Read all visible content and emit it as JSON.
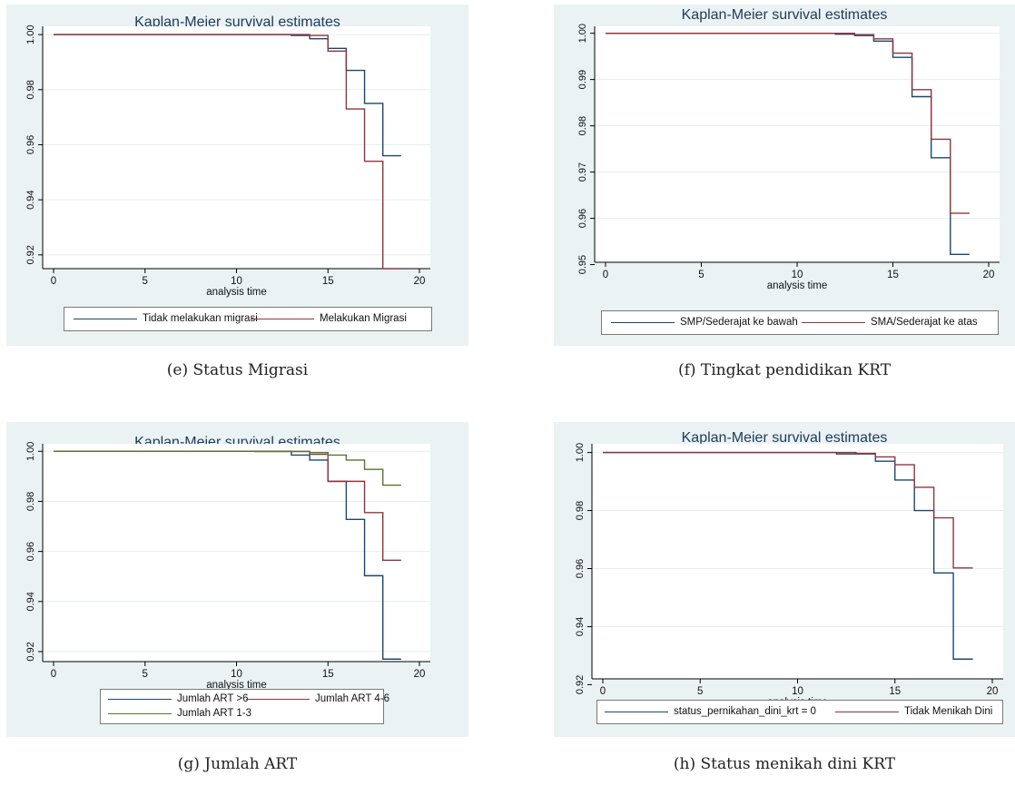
{
  "colors": {
    "blue": "#1a476f",
    "red": "#90353b",
    "green": "#55752f",
    "panel_bg": "#eaf2f3"
  },
  "chart_data": [
    {
      "type": "line",
      "title": "Kaplan-Meier survival estimates",
      "xlabel": "analysis time",
      "ylabel": "",
      "caption": "(e) Status Migrasi",
      "xlim": [
        0,
        20
      ],
      "ylim": [
        0.915,
        1.003
      ],
      "xticks": [
        0,
        5,
        10,
        15,
        20
      ],
      "yticks": [
        0.92,
        0.94,
        0.96,
        0.98,
        1.0
      ],
      "ytick_labels": [
        "0.92",
        "0.94",
        "0.96",
        "0.98",
        "1.00"
      ],
      "legend_cols": 2,
      "series": [
        {
          "name": "Tidak melakukan migrasi",
          "color": "#1a476f",
          "x": [
            0,
            13,
            14,
            15,
            16,
            17,
            18,
            19
          ],
          "y": [
            1.0,
            0.9997,
            0.9985,
            0.995,
            0.987,
            0.975,
            0.956,
            0.956
          ]
        },
        {
          "name": "Melakukan Migrasi",
          "color": "#90353b",
          "x": [
            0,
            14,
            15,
            16,
            17,
            18,
            19
          ],
          "y": [
            1.0,
            0.9997,
            0.994,
            0.973,
            0.954,
            0.915,
            0.915
          ]
        }
      ]
    },
    {
      "type": "line",
      "title": "Kaplan-Meier survival estimates",
      "xlabel": "analysis time",
      "ylabel": "",
      "caption": "(f) Tingkat pendidikan KRT",
      "xlim": [
        0,
        20
      ],
      "ylim": [
        0.9505,
        1.0015
      ],
      "xticks": [
        0,
        5,
        10,
        15,
        20
      ],
      "yticks": [
        0.95,
        0.96,
        0.97,
        0.98,
        0.99,
        1.0
      ],
      "ytick_labels": [
        "0.95",
        "0.96",
        "0.97",
        "0.98",
        "0.99",
        "1.00"
      ],
      "legend_cols": 2,
      "series": [
        {
          "name": "SMP/Sederajat ke bawah",
          "color": "#1a476f",
          "x": [
            0,
            12,
            13,
            14,
            15,
            16,
            17,
            18,
            19
          ],
          "y": [
            1.0,
            0.9998,
            0.9995,
            0.9983,
            0.9948,
            0.9863,
            0.9731,
            0.9522,
            0.9522
          ]
        },
        {
          "name": "SMA/Sederajat ke atas",
          "color": "#90353b",
          "x": [
            0,
            13,
            14,
            15,
            16,
            17,
            18,
            19
          ],
          "y": [
            1.0,
            0.9997,
            0.9988,
            0.9957,
            0.9878,
            0.9771,
            0.9611,
            0.9611
          ]
        }
      ]
    },
    {
      "type": "line",
      "title": "Kaplan-Meier survival estimates",
      "xlabel": "analysis time",
      "ylabel": "",
      "caption": "(g) Jumlah ART",
      "xlim": [
        0,
        20
      ],
      "ylim": [
        0.916,
        1.003
      ],
      "xticks": [
        0,
        5,
        10,
        15,
        20
      ],
      "yticks": [
        0.92,
        0.94,
        0.96,
        0.98,
        1.0
      ],
      "ytick_labels": [
        "0.92",
        "0.94",
        "0.96",
        "0.98",
        "1.00"
      ],
      "legend_cols": 2,
      "series": [
        {
          "name": "Jumlah ART >6",
          "color": "#1a476f",
          "x": [
            0,
            13,
            14,
            15,
            16,
            17,
            18,
            19
          ],
          "y": [
            1.0,
            0.9985,
            0.9965,
            0.988,
            0.9728,
            0.9503,
            0.917,
            0.917
          ]
        },
        {
          "name": "Jumlah ART 4-6",
          "color": "#90353b",
          "x": [
            0,
            14,
            15,
            16,
            17,
            18,
            19
          ],
          "y": [
            1.0,
            0.9988,
            0.988,
            0.988,
            0.9755,
            0.9565,
            0.9565
          ]
        },
        {
          "name": "Jumlah ART 1-3",
          "color": "#55752f",
          "x": [
            0,
            11,
            14,
            15,
            16,
            17,
            18,
            19
          ],
          "y": [
            1.0,
            0.9999,
            0.9995,
            0.9985,
            0.9965,
            0.9928,
            0.9865,
            0.9865
          ]
        }
      ]
    },
    {
      "type": "line",
      "title": "Kaplan-Meier survival estimates",
      "xlabel": "analysis time",
      "ylabel": "",
      "caption": "(h) Status menikah dini KRT",
      "xlim": [
        0,
        20
      ],
      "ylim": [
        0.922,
        1.003
      ],
      "xticks": [
        0,
        5,
        10,
        15,
        20
      ],
      "yticks": [
        0.92,
        0.94,
        0.96,
        0.98,
        1.0
      ],
      "ytick_labels": [
        "0.92",
        "0.94",
        "0.96",
        "0.98",
        "1.00"
      ],
      "legend_cols": 2,
      "series": [
        {
          "name": "status_pernikahan_dini_krt = 0",
          "color": "#1a476f",
          "x": [
            0,
            12,
            14,
            15,
            16,
            17,
            18,
            19
          ],
          "y": [
            1.0,
            0.9995,
            0.997,
            0.9905,
            0.98,
            0.9585,
            0.9288,
            0.9288
          ]
        },
        {
          "name": "Tidak Menikah Dini",
          "color": "#90353b",
          "x": [
            0,
            13,
            14,
            15,
            16,
            17,
            18,
            19
          ],
          "y": [
            1.0,
            0.9997,
            0.9985,
            0.9958,
            0.988,
            0.9775,
            0.9602,
            0.9602
          ]
        }
      ]
    }
  ]
}
